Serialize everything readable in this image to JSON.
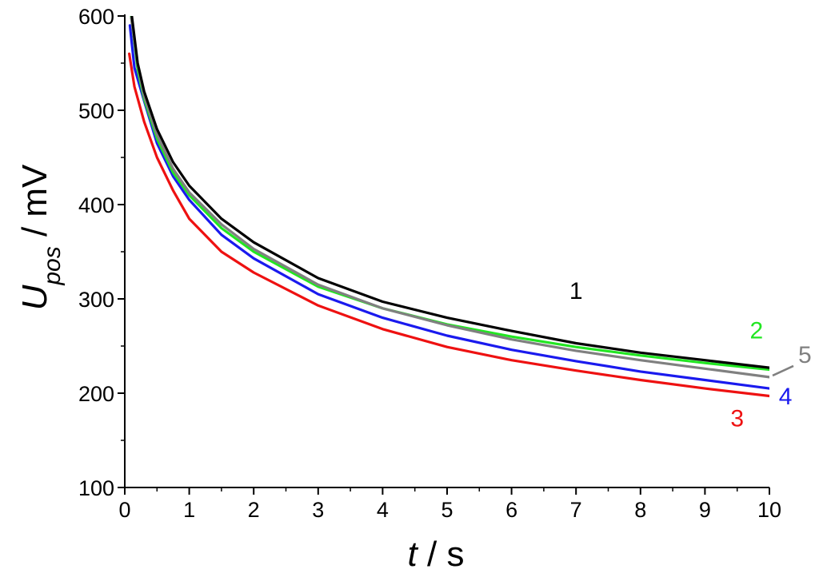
{
  "chart_data": {
    "type": "line",
    "xlabel_var": "t",
    "xlabel_unit": " / s",
    "ylabel_var": "U",
    "ylabel_sub": "pos",
    "ylabel_unit": " / mV",
    "xlim": [
      0,
      10
    ],
    "ylim": [
      100,
      600
    ],
    "xticks": [
      "0",
      "1",
      "2",
      "3",
      "4",
      "5",
      "6",
      "7",
      "8",
      "9",
      "10"
    ],
    "yticks": [
      "100",
      "200",
      "300",
      "400",
      "500",
      "600"
    ],
    "grid": false,
    "series": [
      {
        "name": "1",
        "color": "#000000",
        "x": [
          0.1,
          0.2,
          0.3,
          0.5,
          0.75,
          1,
          1.5,
          2,
          3,
          4,
          5,
          6,
          7,
          8,
          9,
          10
        ],
        "y": [
          605,
          550,
          520,
          480,
          445,
          420,
          385,
          360,
          322,
          297,
          280,
          266,
          253,
          243,
          235,
          227
        ]
      },
      {
        "name": "2",
        "color": "#22e622",
        "x": [
          0.1,
          0.2,
          0.3,
          0.5,
          0.75,
          1,
          1.5,
          2,
          3,
          4,
          5,
          6,
          7,
          8,
          9,
          10
        ],
        "y": [
          600,
          543,
          512,
          470,
          434,
          410,
          375,
          350,
          313,
          290,
          273,
          260,
          249,
          240,
          232,
          225
        ]
      },
      {
        "name": "3",
        "color": "#ee1111",
        "x": [
          0.07,
          0.15,
          0.3,
          0.5,
          0.75,
          1,
          1.5,
          2,
          3,
          4,
          5,
          6,
          7,
          8,
          9,
          10
        ],
        "y": [
          560,
          525,
          488,
          450,
          415,
          385,
          350,
          328,
          293,
          268,
          249,
          235,
          224,
          214,
          205,
          197
        ]
      },
      {
        "name": "4",
        "color": "#1a1aee",
        "x": [
          0.08,
          0.15,
          0.3,
          0.5,
          0.75,
          1,
          1.5,
          2,
          3,
          4,
          5,
          6,
          7,
          8,
          9,
          10
        ],
        "y": [
          590,
          545,
          510,
          465,
          430,
          405,
          368,
          343,
          305,
          280,
          261,
          246,
          234,
          223,
          214,
          205
        ]
      },
      {
        "name": "5",
        "color": "#808080",
        "x": [
          0.1,
          0.2,
          0.3,
          0.5,
          0.75,
          1,
          1.5,
          2,
          3,
          4,
          5,
          6,
          7,
          8,
          9,
          10
        ],
        "y": [
          598,
          548,
          515,
          474,
          438,
          413,
          379,
          353,
          315,
          290,
          272,
          257,
          245,
          235,
          226,
          217
        ]
      }
    ],
    "labels": [
      {
        "text": "1",
        "color": "#000000",
        "x": 7.0,
        "y": 300
      },
      {
        "text": "2",
        "color": "#22e622",
        "x": 9.8,
        "y": 258
      },
      {
        "text": "3",
        "color": "#ee1111",
        "x": 9.5,
        "y": 165
      },
      {
        "text": "4",
        "color": "#1a1aee",
        "x": 10.25,
        "y": 188
      },
      {
        "text": "5",
        "color": "#808080",
        "x": 10.55,
        "y": 232
      }
    ]
  }
}
